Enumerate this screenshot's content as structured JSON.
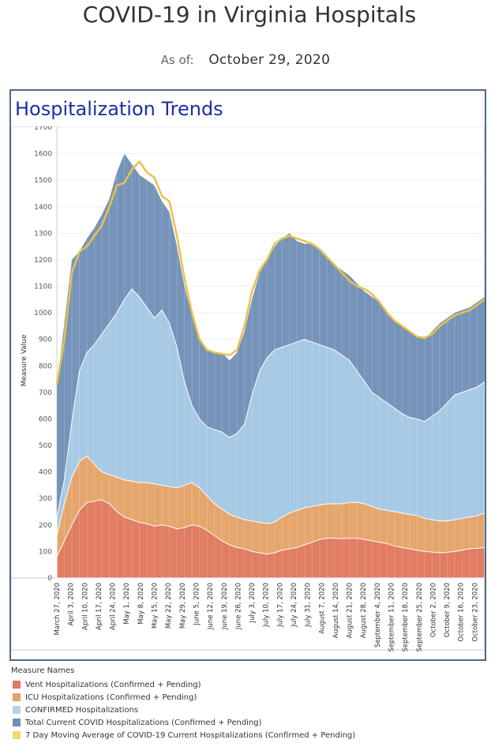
{
  "header": {
    "title": "COVID-19 in Virginia Hospitals",
    "as_of_label": "As of:",
    "as_of_date": "October 29, 2020"
  },
  "panel": {
    "title": "Hospitalization Trends"
  },
  "legend": {
    "title": "Measure Names",
    "items": [
      {
        "label": "Vent Hospitalizations (Confirmed + Pending)",
        "color": "#e07a62"
      },
      {
        "label": "ICU Hospitalizations (Confirmed + Pending)",
        "color": "#e8a466"
      },
      {
        "label": "CONFIRMED Hospitalizations",
        "color": "#b5d3ea"
      },
      {
        "label": "Total Current COVID Hospitalizations (Confirmed + Pending)",
        "color": "#6f8db6"
      },
      {
        "label": "7 Day Moving Average of COVID-19 Current Hospitalizations (Confirmed + Pending)",
        "color": "#f1d877"
      }
    ]
  },
  "chart_data": {
    "type": "area",
    "ylabel": "Measure Value",
    "xlabel": "",
    "ylim": [
      0,
      1700
    ],
    "yticks": [
      0,
      100,
      200,
      300,
      400,
      500,
      600,
      700,
      800,
      900,
      1000,
      1100,
      1200,
      1300,
      1400,
      1500,
      1600,
      1700
    ],
    "x_start": "2020-03-27",
    "x_end": "2020-10-28",
    "xtick_labels": [
      "March 27, 2020",
      "April 3, 2020",
      "April 10, 2020",
      "April 17, 2020",
      "April 24, 2020",
      "May 1, 2020",
      "May 8, 2020",
      "May 15, 2020",
      "May 22, 2020",
      "May 29, 2020",
      "June 5, 2020",
      "June 12, 2020",
      "June 19, 2020",
      "June 26, 2020",
      "July 3, 2020",
      "July 10, 2020",
      "July 17, 2020",
      "July 24, 2020",
      "July 31, 2020",
      "August 7, 2020",
      "August 14, 2020",
      "August 21, 2020",
      "August 28, 2020",
      "September 4, 2020",
      "September 11, 2020",
      "September 18, 2020",
      "September 25, 2020",
      "October 2, 2020",
      "October 9, 2020",
      "October 16, 2020",
      "October 23, 2020"
    ],
    "colors": {
      "vent": "#e07a62",
      "icu": "#e8a466",
      "confirmed": "#a9cbe6",
      "total": "#6f8db6",
      "avg": "#e8c24a"
    },
    "series": [
      {
        "name": "Vent Hospitalizations (Confirmed + Pending)",
        "key": "vent",
        "values": [
          80,
          140,
          200,
          255,
          285,
          290,
          295,
          280,
          250,
          230,
          220,
          210,
          205,
          195,
          200,
          195,
          185,
          190,
          200,
          195,
          180,
          160,
          140,
          125,
          115,
          110,
          100,
          95,
          90,
          95,
          105,
          110,
          115,
          125,
          135,
          145,
          150,
          150,
          148,
          150,
          150,
          145,
          140,
          135,
          130,
          120,
          115,
          110,
          105,
          100,
          98,
          95,
          97,
          100,
          105,
          110,
          112,
          115
        ]
      },
      {
        "name": "ICU Hospitalizations (Confirmed + Pending)",
        "key": "icu",
        "values": [
          160,
          280,
          380,
          440,
          460,
          430,
          400,
          390,
          380,
          370,
          365,
          360,
          360,
          355,
          350,
          345,
          340,
          350,
          360,
          340,
          310,
          280,
          260,
          240,
          230,
          220,
          215,
          210,
          205,
          210,
          230,
          245,
          255,
          265,
          270,
          275,
          280,
          280,
          280,
          285,
          285,
          280,
          270,
          260,
          255,
          250,
          245,
          240,
          235,
          225,
          220,
          215,
          215,
          220,
          225,
          230,
          235,
          245
        ]
      },
      {
        "name": "CONFIRMED Hospitalizations",
        "key": "confirmed",
        "values": [
          230,
          370,
          590,
          780,
          850,
          880,
          920,
          960,
          1000,
          1050,
          1090,
          1060,
          1020,
          980,
          1010,
          960,
          870,
          740,
          650,
          600,
          570,
          560,
          550,
          530,
          545,
          580,
          690,
          780,
          830,
          860,
          870,
          880,
          890,
          900,
          890,
          880,
          870,
          860,
          840,
          820,
          780,
          740,
          700,
          680,
          660,
          640,
          620,
          605,
          600,
          590,
          610,
          630,
          660,
          690,
          700,
          710,
          720,
          740
        ]
      },
      {
        "name": "Total Current COVID Hospitalizations (Confirmed + Pending)",
        "key": "total",
        "values": [
          720,
          960,
          1200,
          1230,
          1280,
          1320,
          1370,
          1430,
          1530,
          1600,
          1560,
          1520,
          1500,
          1480,
          1420,
          1380,
          1250,
          1100,
          990,
          900,
          860,
          850,
          850,
          820,
          850,
          930,
          1050,
          1150,
          1200,
          1250,
          1280,
          1300,
          1270,
          1260,
          1260,
          1240,
          1210,
          1180,
          1160,
          1140,
          1110,
          1080,
          1060,
          1040,
          1000,
          970,
          950,
          930,
          910,
          900,
          930,
          960,
          980,
          1000,
          1010,
          1020,
          1040,
          1060
        ]
      },
      {
        "name": "7 Day Moving Average of COVID-19 Current Hospitalizations (Confirmed + Pending)",
        "key": "avg",
        "values": [
          730,
          900,
          1150,
          1230,
          1250,
          1290,
          1330,
          1400,
          1480,
          1490,
          1540,
          1570,
          1530,
          1510,
          1440,
          1420,
          1290,
          1130,
          1000,
          900,
          860,
          850,
          845,
          840,
          860,
          950,
          1080,
          1160,
          1200,
          1260,
          1280,
          1290,
          1280,
          1270,
          1260,
          1240,
          1210,
          1180,
          1150,
          1120,
          1100,
          1090,
          1070,
          1040,
          1000,
          970,
          950,
          930,
          910,
          905,
          920,
          950,
          970,
          990,
          1000,
          1010,
          1030,
          1050
        ]
      }
    ]
  }
}
